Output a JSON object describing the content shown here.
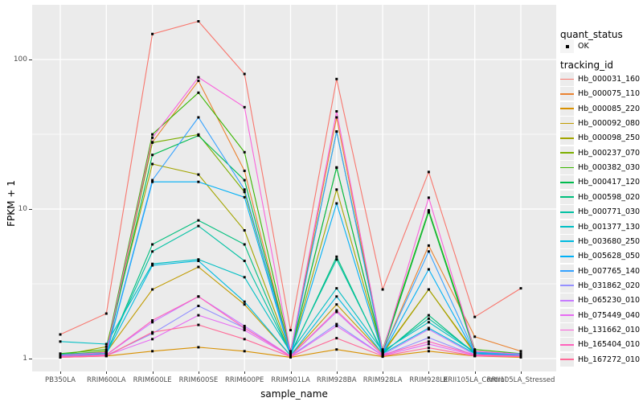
{
  "axes": {
    "x_title": "sample_name",
    "y_title": "FPKM + 1"
  },
  "legend": {
    "quant_status_title": "quant_status",
    "quant_ok_label": "OK",
    "tracking_title": "tracking_id"
  },
  "style": {
    "panel_bg": "#EBEBEB",
    "grid_color": "#FFFFFF",
    "point_color": "#000000",
    "tick_color": "#333333",
    "tick_label_color": "#4D4D4D"
  },
  "chart_data": {
    "type": "line",
    "title": "",
    "xlabel": "sample_name",
    "ylabel": "FPKM + 1",
    "y_scale": "log10",
    "ylim": [
      0.82,
      230
    ],
    "y_ticks": [
      1,
      10,
      100
    ],
    "y_tick_labels": [
      "1",
      "10",
      "100"
    ],
    "y_minor_gridlines": [
      3.162,
      31.62
    ],
    "grid": "on",
    "legend_position": "right",
    "quant_status": "OK",
    "categories": [
      "PB350LA",
      "RRIM600LA",
      "RRIM600LE",
      "RRIM600SE",
      "RRIM600PE",
      "RRIM901LA",
      "RRIM928BA",
      "RRIM928LA",
      "RRIM928LE",
      "RRII105LA_Control",
      "RRII105LA_Stressed"
    ],
    "series": [
      {
        "tracking_id": "Hb_000031_160",
        "color": "#F8766D",
        "values": [
          1.45,
          2.0,
          148,
          180,
          80,
          1.55,
          74,
          2.9,
          17.7,
          1.9,
          2.95
        ]
      },
      {
        "tracking_id": "Hb_000075_110",
        "color": "#EA8331",
        "values": [
          1.04,
          1.08,
          28,
          72,
          18,
          1.08,
          41,
          1.1,
          5.7,
          1.4,
          1.12
        ]
      },
      {
        "tracking_id": "Hb_000085_220",
        "color": "#D89000",
        "values": [
          1.02,
          1.04,
          1.12,
          1.19,
          1.12,
          1.02,
          1.15,
          1.03,
          1.12,
          1.04,
          1.02
        ]
      },
      {
        "tracking_id": "Hb_000092_080",
        "color": "#C09B00",
        "values": [
          1.03,
          1.1,
          2.9,
          4.1,
          2.3,
          1.05,
          2.3,
          1.08,
          2.9,
          1.08,
          1.04
        ]
      },
      {
        "tracking_id": "Hb_000098_250",
        "color": "#A3A500",
        "values": [
          1.05,
          1.2,
          20,
          17,
          7.2,
          1.08,
          13.5,
          1.1,
          2.9,
          1.1,
          1.05
        ]
      },
      {
        "tracking_id": "Hb_000237_070",
        "color": "#7CAE00",
        "values": [
          1.06,
          1.12,
          27.8,
          31.5,
          13,
          1.1,
          18.9,
          1.12,
          9.5,
          1.12,
          1.06
        ]
      },
      {
        "tracking_id": "Hb_000382_030",
        "color": "#39B600",
        "values": [
          1.08,
          1.15,
          31.6,
          60,
          24,
          1.12,
          33,
          1.15,
          9.8,
          1.15,
          1.08
        ]
      },
      {
        "tracking_id": "Hb_000417_120",
        "color": "#00BB4E",
        "values": [
          1.05,
          1.1,
          23,
          31,
          15.6,
          1.08,
          19,
          1.1,
          9.6,
          1.1,
          1.05
        ]
      },
      {
        "tracking_id": "Hb_000598_020",
        "color": "#00BF7D",
        "values": [
          1.05,
          1.08,
          5.8,
          8.4,
          5.8,
          1.06,
          4.8,
          1.08,
          1.95,
          1.08,
          1.05
        ]
      },
      {
        "tracking_id": "Hb_000771_030",
        "color": "#00C1A3",
        "values": [
          1.07,
          1.1,
          5.2,
          7.7,
          4.5,
          1.08,
          4.6,
          1.1,
          1.85,
          1.1,
          1.06
        ]
      },
      {
        "tracking_id": "Hb_001377_130",
        "color": "#00BFC4",
        "values": [
          1.3,
          1.25,
          4.3,
          4.6,
          3.5,
          1.1,
          2.95,
          1.12,
          1.75,
          1.1,
          1.08
        ]
      },
      {
        "tracking_id": "Hb_003680_250",
        "color": "#00BAE0",
        "values": [
          1.06,
          1.08,
          4.2,
          4.5,
          2.4,
          1.05,
          2.6,
          1.08,
          1.6,
          1.08,
          1.05
        ]
      },
      {
        "tracking_id": "Hb_005628_050",
        "color": "#00B0F6",
        "values": [
          1.04,
          1.06,
          15.2,
          15.2,
          12,
          1.06,
          10.9,
          1.08,
          3.95,
          1.08,
          1.05
        ]
      },
      {
        "tracking_id": "Hb_007765_140",
        "color": "#35A2FF",
        "values": [
          1.05,
          1.08,
          15.6,
          41,
          13.5,
          1.08,
          33,
          1.1,
          5.2,
          1.1,
          1.06
        ]
      },
      {
        "tracking_id": "Hb_031862_020",
        "color": "#9590FF",
        "values": [
          1.02,
          1.05,
          1.47,
          2.25,
          1.6,
          1.04,
          1.7,
          1.05,
          1.38,
          1.05,
          1.03
        ]
      },
      {
        "tracking_id": "Hb_065230_010",
        "color": "#C77CFF",
        "values": [
          1.03,
          1.06,
          1.75,
          2.6,
          1.65,
          1.04,
          2.05,
          1.06,
          1.57,
          1.06,
          1.04
        ]
      },
      {
        "tracking_id": "Hb_075449_040",
        "color": "#E76BF3",
        "values": [
          1.02,
          1.05,
          1.35,
          1.95,
          1.55,
          1.03,
          1.65,
          1.05,
          1.25,
          1.05,
          1.03
        ]
      },
      {
        "tracking_id": "Hb_131662_010",
        "color": "#FA62DB",
        "values": [
          1.05,
          1.1,
          30,
          76,
          48,
          1.1,
          45,
          1.12,
          11.9,
          1.12,
          1.07
        ]
      },
      {
        "tracking_id": "Hb_165404_010",
        "color": "#FF62BC",
        "values": [
          1.03,
          1.06,
          1.8,
          2.6,
          1.6,
          1.04,
          2.1,
          1.06,
          1.3,
          1.06,
          1.04
        ]
      },
      {
        "tracking_id": "Hb_167272_010",
        "color": "#FF6A98",
        "values": [
          1.02,
          1.04,
          1.5,
          1.68,
          1.35,
          1.03,
          1.37,
          1.04,
          1.18,
          1.04,
          1.03
        ]
      }
    ]
  }
}
